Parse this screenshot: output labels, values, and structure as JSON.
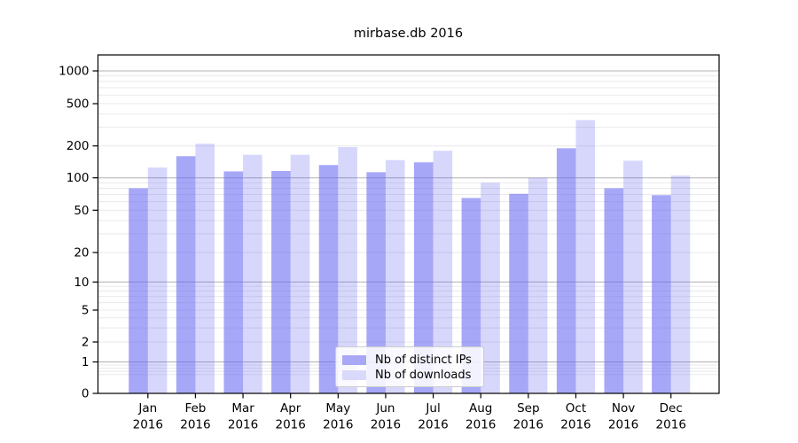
{
  "chart_data": {
    "type": "bar",
    "title": "mirbase.db 2016",
    "categories": [
      "Jan 2016",
      "Feb 2016",
      "Mar 2016",
      "Apr 2016",
      "May 2016",
      "Jun 2016",
      "Jul 2016",
      "Aug 2016",
      "Sep 2016",
      "Oct 2016",
      "Nov 2016",
      "Dec 2016"
    ],
    "series": [
      {
        "name": "Nb of distinct IPs",
        "color": "rgba(102,102,242,0.575)",
        "swatch_hex": "#a8a8f6",
        "values": [
          80,
          160,
          115,
          116,
          132,
          113,
          140,
          65,
          71,
          190,
          80,
          69
        ]
      },
      {
        "name": "Nb of downloads",
        "color": "rgba(102,102,242,0.26)",
        "swatch_hex": "#d9d9fb",
        "values": [
          125,
          210,
          165,
          165,
          195,
          147,
          180,
          90,
          100,
          350,
          145,
          105
        ]
      }
    ],
    "xlabel": "",
    "ylabel": "",
    "y_axis": {
      "scale": "log",
      "tick_labels": [
        "1000",
        "500",
        "200",
        "100",
        "50",
        "20",
        "10",
        "5",
        "2",
        "1",
        "0"
      ],
      "tick_values": [
        1000,
        500,
        200,
        100,
        50,
        20,
        10,
        5,
        2,
        1,
        0
      ],
      "ylim": [
        0,
        1400
      ]
    },
    "grid": {
      "on": true,
      "major_color": "#b0b0b0",
      "minor_color": "#e9e9e9"
    },
    "legend_position": "lower center",
    "frame_color": "#000000",
    "background_color": "#ffffff",
    "text_color": "#000000"
  }
}
